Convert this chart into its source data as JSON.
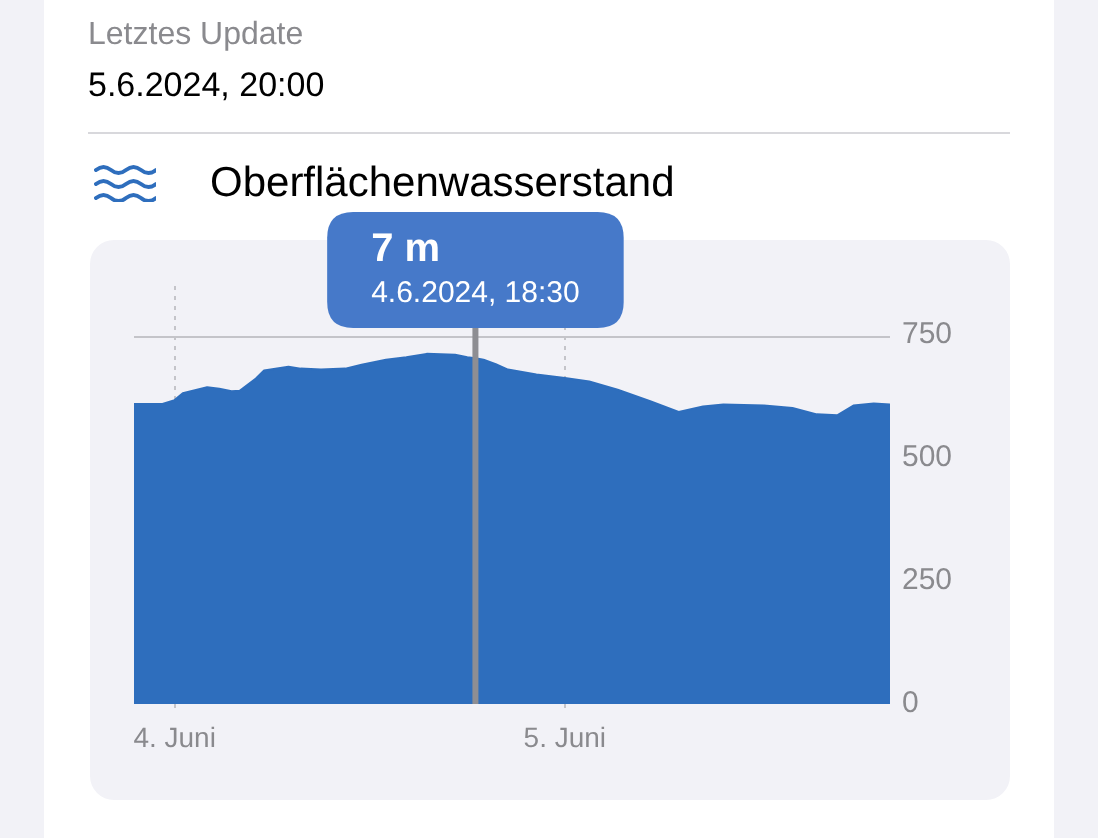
{
  "chart_data": {
    "type": "area",
    "title": "Oberflächenwasserstand",
    "annotations": [
      "Letztes Update",
      "5.6.2024, 20:00",
      "7 m"
    ],
    "x": [
      "2024-06-03T21:30",
      "2024-06-03T23:15",
      "2024-06-04T00:00",
      "2024-06-04T00:30",
      "2024-06-04T02:00",
      "2024-06-04T02:45",
      "2024-06-04T03:30",
      "2024-06-04T04:00",
      "2024-06-04T05:00",
      "2024-06-04T05:30",
      "2024-06-04T07:00",
      "2024-06-04T07:45",
      "2024-06-04T09:00",
      "2024-06-04T10:30",
      "2024-06-04T11:30",
      "2024-06-04T13:00",
      "2024-06-04T14:15",
      "2024-06-04T15:30",
      "2024-06-04T17:15",
      "2024-06-04T18:00",
      "2024-06-04T18:30",
      "2024-06-04T19:00",
      "2024-06-04T19:45",
      "2024-06-04T20:30",
      "2024-06-04T22:15",
      "2024-06-05T00:00",
      "2024-06-05T01:30",
      "2024-06-05T03:15",
      "2024-06-05T05:15",
      "2024-06-05T07:00",
      "2024-06-05T08:30",
      "2024-06-05T09:45",
      "2024-06-05T12:15",
      "2024-06-05T14:00",
      "2024-06-05T15:30",
      "2024-06-05T16:45",
      "2024-06-05T17:45",
      "2024-06-05T19:00",
      "2024-06-05T20:00"
    ],
    "values": [
      610,
      610,
      618,
      632,
      644,
      641,
      636,
      637,
      662,
      678,
      686,
      682,
      680,
      682,
      690,
      700,
      705,
      712,
      710,
      705,
      703,
      700,
      691,
      680,
      670,
      663,
      656,
      639,
      616,
      594,
      605,
      609,
      607,
      602,
      589,
      587,
      607,
      611,
      609
    ],
    "color": "#2e6ebd",
    "xlim": [
      "2024-06-03T21:30",
      "2024-06-05T20:00"
    ],
    "xticks": [
      {
        "value": "2024-06-04",
        "label": "4. Juni"
      },
      {
        "value": "2024-06-05",
        "label": "5. Juni"
      }
    ],
    "ylim": [
      0,
      850
    ],
    "yticks": [
      0,
      250,
      500,
      750
    ],
    "ref_lines": [
      {
        "axis": "x",
        "value": "2024-06-04T18:30",
        "label": "4.6.2024, 18:30",
        "color": "#8e8e93"
      },
      {
        "axis": "y",
        "value": 750,
        "color": "#c4c4c9"
      }
    ],
    "grid": "x",
    "legend": false,
    "marker": "none",
    "line_style": "solid"
  }
}
